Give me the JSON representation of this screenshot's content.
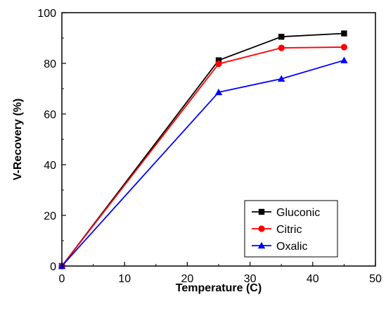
{
  "chart_data": {
    "type": "line",
    "title": "",
    "xlabel": "Temperature (C)",
    "ylabel": "V-Recovery (%)",
    "xlim": [
      0,
      50
    ],
    "ylim": [
      0,
      100
    ],
    "x_ticks": [
      0,
      10,
      20,
      30,
      40,
      50
    ],
    "y_ticks": [
      0,
      20,
      40,
      60,
      80,
      100
    ],
    "x_tick_labels": [
      "0",
      "10",
      "20",
      "30",
      "40",
      "50"
    ],
    "y_tick_labels": [
      "0",
      "20",
      "40",
      "60",
      "80",
      "100"
    ],
    "grid": false,
    "legend_position": "bottom-right",
    "series": [
      {
        "name": "Gluconic",
        "color": "#000000",
        "marker": "square",
        "x": [
          0,
          25,
          35,
          45
        ],
        "y": [
          0,
          81.2,
          90.5,
          91.8
        ]
      },
      {
        "name": "Citric",
        "color": "#ff0000",
        "marker": "circle",
        "x": [
          0,
          25,
          35,
          45
        ],
        "y": [
          0,
          79.8,
          86.1,
          86.4
        ]
      },
      {
        "name": "Oxalic",
        "color": "#0000ff",
        "marker": "triangle",
        "x": [
          0,
          25,
          35,
          45
        ],
        "y": [
          0,
          68.6,
          73.9,
          81.2
        ]
      }
    ]
  }
}
